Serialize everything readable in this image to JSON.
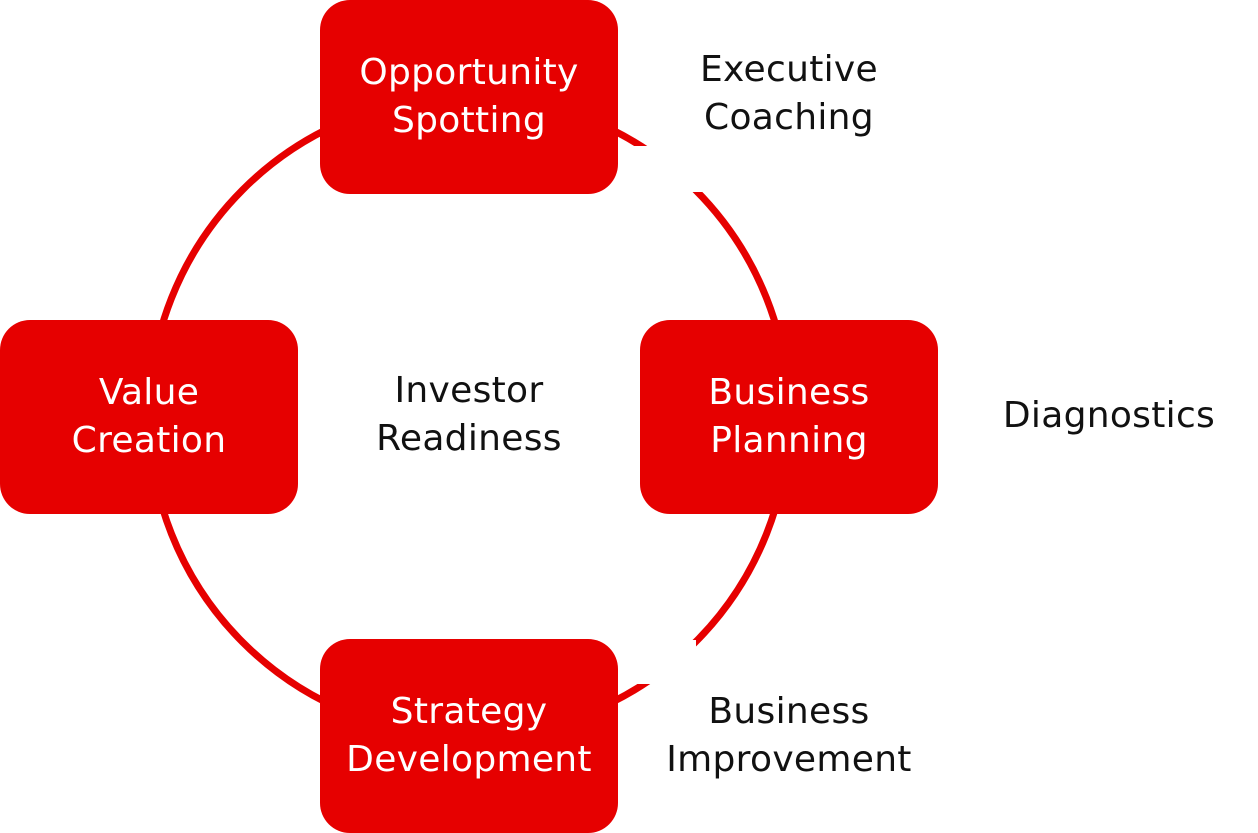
{
  "colors": {
    "accent": "#e60000",
    "box_text": "#ffffff",
    "label_text": "#111111"
  },
  "nodes": {
    "opportunity_spotting": [
      "Opportunity",
      "Spotting"
    ],
    "business_planning": [
      "Business",
      "Planning"
    ],
    "strategy_development": [
      "Strategy",
      "Development"
    ],
    "value_creation": [
      "Value",
      "Creation"
    ]
  },
  "labels": {
    "executive_coaching": [
      "Executive",
      "Coaching"
    ],
    "investor_readiness": [
      "Investor",
      "Readiness"
    ],
    "diagnostics": [
      "Diagnostics"
    ],
    "business_improvement": [
      "Business",
      "Improvement"
    ]
  }
}
